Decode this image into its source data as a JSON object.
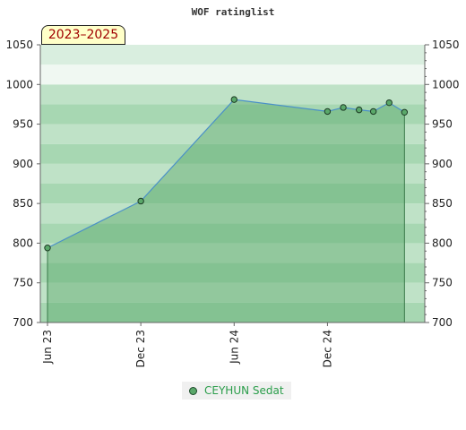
{
  "chart_data": {
    "type": "area",
    "title": "WOF ratinglist",
    "badge": "2023–2025",
    "ylim": [
      700,
      1050
    ],
    "yticks": [
      700,
      750,
      800,
      850,
      900,
      950,
      1000,
      1050
    ],
    "x_ticks": [
      {
        "label": "Jun 23",
        "date": "2023-06-01"
      },
      {
        "label": "Dec 23",
        "date": "2023-12-01"
      },
      {
        "label": "Jun 24",
        "date": "2024-06-01"
      },
      {
        "label": "Dec 24",
        "date": "2024-12-01"
      }
    ],
    "x_range": [
      "2023-06-01",
      "2025-05-25"
    ],
    "series": [
      {
        "name": "CEYHUN Sedat",
        "color": "#5aa86a",
        "points": [
          {
            "x": "2023-06-01",
            "y": 794
          },
          {
            "x": "2023-12-01",
            "y": 853
          },
          {
            "x": "2024-06-01",
            "y": 981
          },
          {
            "x": "2024-12-01",
            "y": 966
          },
          {
            "x": "2025-01-01",
            "y": 971
          },
          {
            "x": "2025-02-01",
            "y": 968
          },
          {
            "x": "2025-03-01",
            "y": 966
          },
          {
            "x": "2025-04-01",
            "y": 977
          },
          {
            "x": "2025-05-01",
            "y": 965
          }
        ]
      }
    ],
    "legend_position": "bottom-center",
    "grid": true
  }
}
